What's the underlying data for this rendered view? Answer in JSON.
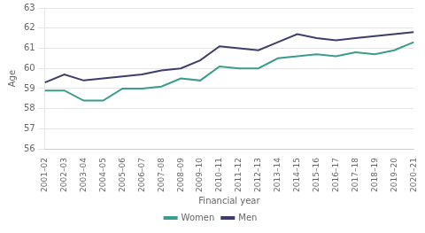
{
  "chart_data": {
    "type": "line",
    "categories": [
      "2001–02",
      "2002–03",
      "2003–04",
      "2004–05",
      "2005–06",
      "2006–07",
      "2007–08",
      "2008–09",
      "2009–10",
      "2010–11",
      "2011–12",
      "2012–13",
      "2013–14",
      "2014–15",
      "2015–16",
      "2016–17",
      "2017–18",
      "2018–19",
      "2019–20",
      "2020–21"
    ],
    "series": [
      {
        "name": "Women",
        "color": "#3a9c8c",
        "values": [
          58.9,
          58.9,
          58.4,
          58.4,
          59.0,
          59.0,
          59.1,
          59.5,
          59.4,
          60.1,
          60.0,
          60.0,
          60.5,
          60.6,
          60.7,
          60.6,
          60.8,
          60.7,
          60.9,
          61.3
        ]
      },
      {
        "name": "Men",
        "color": "#3d3d6b",
        "values": [
          59.3,
          59.7,
          59.4,
          59.5,
          59.6,
          59.7,
          59.9,
          60.0,
          60.4,
          61.1,
          61.0,
          60.9,
          61.3,
          61.7,
          61.5,
          61.4,
          61.5,
          61.6,
          61.7,
          61.8
        ]
      }
    ],
    "xlabel": "Financial year",
    "ylabel": "Age",
    "ylim": [
      56,
      63
    ],
    "yticks": [
      56,
      57,
      58,
      59,
      60,
      61,
      62,
      63
    ],
    "grid": true,
    "legend": "bottom"
  }
}
